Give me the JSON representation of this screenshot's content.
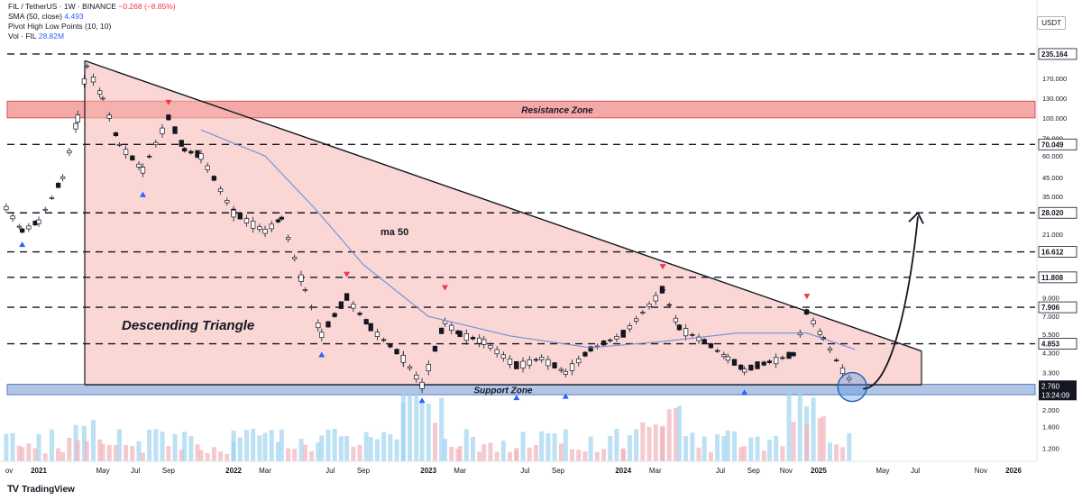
{
  "legend": {
    "symbol": "FIL / TetherUS · 1W · BINANCE",
    "change": "−0.268 (−8.85%)",
    "sma_label": "SMA (50, close)",
    "sma_value": "4.493",
    "pivot_label": "Pivot High Low Points (10, 10)",
    "vol_label": "Vol · FIL",
    "vol_value": "28.82M"
  },
  "unit": "USDT",
  "brand": "TradingView",
  "chart_data": {
    "type": "candlestick",
    "symbol": "FIL / TetherUS",
    "interval": "1W",
    "exchange": "BINANCE",
    "y_scale": "log",
    "y_ticks": [
      235.0,
      170.0,
      130.0,
      100.0,
      76.0,
      60.0,
      45.0,
      35.0,
      21.0,
      9.0,
      7.0,
      5.5,
      4.3,
      3.3,
      2.0,
      1.6,
      1.2
    ],
    "y_tick_labels": [
      "235.000",
      "170.000",
      "130.000",
      "100.000",
      "76.000",
      "60.000",
      "45.000",
      "35.000",
      "21.000",
      "9.000",
      "7.000",
      "5.500",
      "4.300",
      "3.300",
      "2.000",
      "1.600",
      "1.200"
    ],
    "price_levels": [
      {
        "value": 235.164,
        "label": "235.164",
        "style": "dashed"
      },
      {
        "value": 70.049,
        "label": "70.049",
        "style": "dashed"
      },
      {
        "value": 28.02,
        "label": "28.020",
        "style": "dashed"
      },
      {
        "value": 16.612,
        "label": "16.612",
        "style": "dashed"
      },
      {
        "value": 11.808,
        "label": "11.808",
        "style": "dashed"
      },
      {
        "value": 7.906,
        "label": "7.906",
        "style": "dashed"
      },
      {
        "value": 4.853,
        "label": "4.853",
        "style": "dashed"
      }
    ],
    "last_price": {
      "value": 2.76,
      "label": "2.760",
      "countdown": "13:24:09"
    },
    "x_ticks": [
      "ov",
      "2021",
      "May",
      "Jul",
      "Sep",
      "2022",
      "Mar",
      "Jul",
      "Sep",
      "2023",
      "Mar",
      "Jul",
      "Sep",
      "2024",
      "Mar",
      "Jul",
      "Sep",
      "Nov",
      "2025",
      "May",
      "Jul",
      "Nov",
      "2026"
    ],
    "zones": [
      {
        "name": "Resistance Zone",
        "low": 100.0,
        "high": 125.0,
        "color": "#f28b8b"
      },
      {
        "name": "Support Zone",
        "low": 2.45,
        "high": 2.82,
        "color": "#9fb7df"
      }
    ],
    "annotations": {
      "triangle_label": "Descending Triangle",
      "ma_label": "ma 50",
      "triangle_apex_start_price": 215.0,
      "triangle_base_price": 2.8,
      "projection_target": 28.0
    },
    "price_series": [
      {
        "date": "2020-11-01",
        "close": 30
      },
      {
        "date": "2020-12-01",
        "close": 22
      },
      {
        "date": "2021-01-01",
        "close": 25
      },
      {
        "date": "2021-02-15",
        "close": 45
      },
      {
        "date": "2021-03-15",
        "close": 100
      },
      {
        "date": "2021-04-01",
        "close": 200
      },
      {
        "date": "2021-05-01",
        "close": 130
      },
      {
        "date": "2021-06-01",
        "close": 70
      },
      {
        "date": "2021-07-15",
        "close": 50
      },
      {
        "date": "2021-09-01",
        "close": 100
      },
      {
        "date": "2021-10-01",
        "close": 65
      },
      {
        "date": "2021-11-01",
        "close": 60
      },
      {
        "date": "2022-01-01",
        "close": 28
      },
      {
        "date": "2022-03-01",
        "close": 22
      },
      {
        "date": "2022-04-01",
        "close": 26
      },
      {
        "date": "2022-05-15",
        "close": 10
      },
      {
        "date": "2022-06-15",
        "close": 5.5
      },
      {
        "date": "2022-08-01",
        "close": 9
      },
      {
        "date": "2022-09-15",
        "close": 6
      },
      {
        "date": "2022-11-15",
        "close": 4
      },
      {
        "date": "2022-12-20",
        "close": 2.8
      },
      {
        "date": "2023-02-01",
        "close": 6.5
      },
      {
        "date": "2023-03-01",
        "close": 5.5
      },
      {
        "date": "2023-04-15",
        "close": 5
      },
      {
        "date": "2023-06-15",
        "close": 3.6
      },
      {
        "date": "2023-08-01",
        "close": 4.0
      },
      {
        "date": "2023-09-15",
        "close": 3.3
      },
      {
        "date": "2023-11-01",
        "close": 4.5
      },
      {
        "date": "2024-01-01",
        "close": 5.5
      },
      {
        "date": "2024-03-15",
        "close": 10
      },
      {
        "date": "2024-04-15",
        "close": 6
      },
      {
        "date": "2024-06-01",
        "close": 5
      },
      {
        "date": "2024-07-15",
        "close": 4
      },
      {
        "date": "2024-08-15",
        "close": 3.4
      },
      {
        "date": "2024-10-01",
        "close": 3.8
      },
      {
        "date": "2024-11-15",
        "close": 4.2
      },
      {
        "date": "2024-12-10",
        "close": 7.5
      },
      {
        "date": "2025-01-10",
        "close": 5.2
      },
      {
        "date": "2025-02-15",
        "close": 3.4
      },
      {
        "date": "2025-03-10",
        "close": 2.76
      }
    ],
    "pivot_highs": [
      {
        "date": "2021-09-01",
        "price": 110
      },
      {
        "date": "2022-08-01",
        "price": 11
      },
      {
        "date": "2023-02-01",
        "price": 9.2
      },
      {
        "date": "2024-03-15",
        "price": 12.2
      },
      {
        "date": "2024-12-10",
        "price": 8.2
      }
    ],
    "pivot_lows": [
      {
        "date": "2020-12-01",
        "price": 21
      },
      {
        "date": "2021-07-15",
        "price": 41
      },
      {
        "date": "2022-06-15",
        "price": 4.8
      },
      {
        "date": "2022-12-20",
        "price": 2.6
      },
      {
        "date": "2023-06-15",
        "price": 2.7
      },
      {
        "date": "2023-09-15",
        "price": 2.75
      },
      {
        "date": "2024-08-15",
        "price": 2.9
      }
    ],
    "sma50": [
      {
        "date": "2021-11-01",
        "value": 85
      },
      {
        "date": "2022-03-01",
        "value": 60
      },
      {
        "date": "2022-06-01",
        "value": 30
      },
      {
        "date": "2022-09-01",
        "value": 14
      },
      {
        "date": "2023-01-01",
        "value": 7
      },
      {
        "date": "2023-06-01",
        "value": 5.4
      },
      {
        "date": "2023-11-01",
        "value": 4.6
      },
      {
        "date": "2024-03-15",
        "value": 5.0
      },
      {
        "date": "2024-08-01",
        "value": 5.6
      },
      {
        "date": "2024-12-10",
        "value": 5.6
      },
      {
        "date": "2025-03-10",
        "value": 4.5
      }
    ]
  }
}
